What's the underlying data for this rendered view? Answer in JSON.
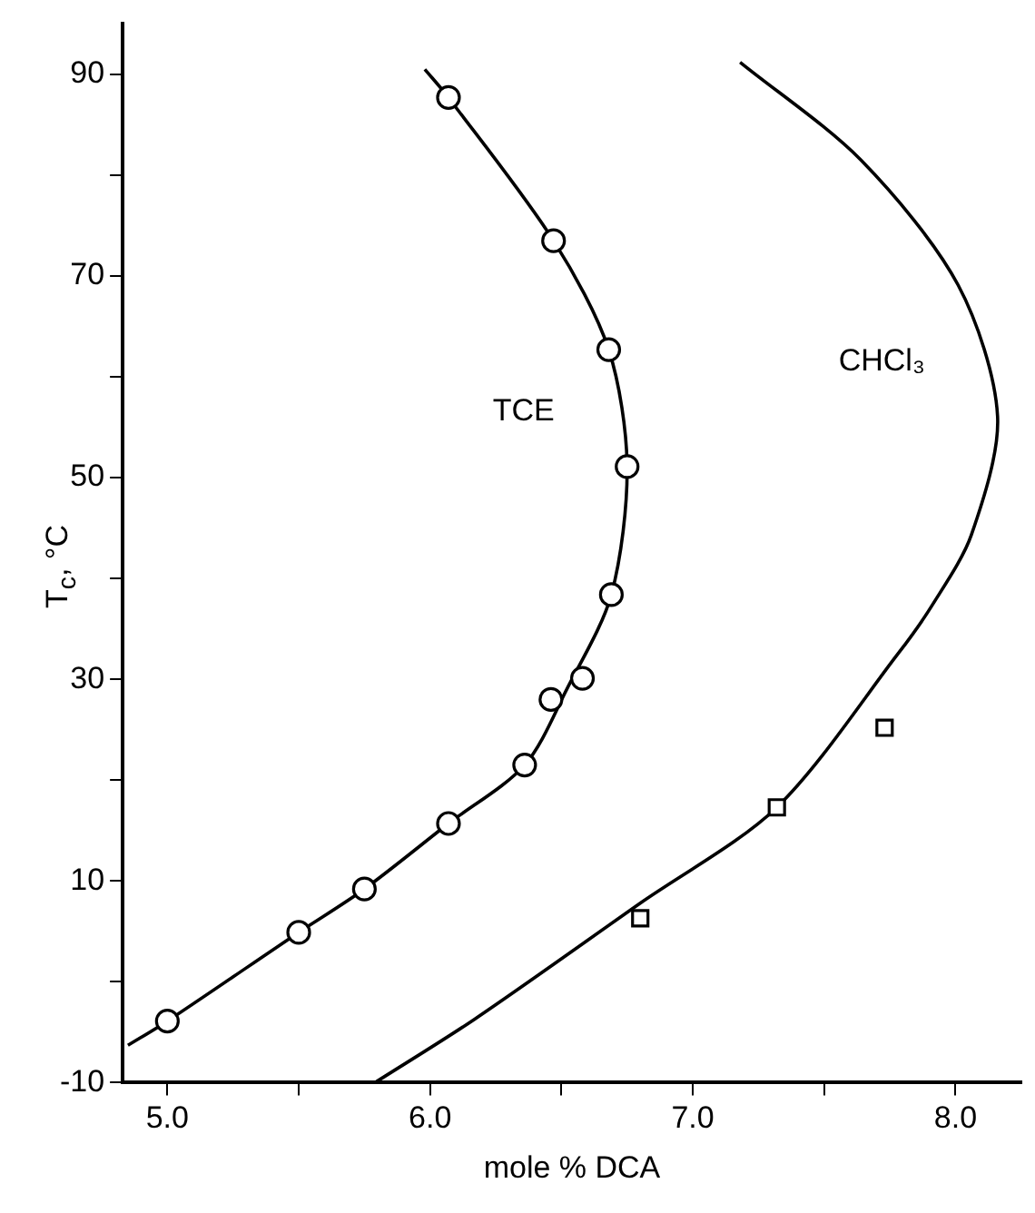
{
  "chart_data": {
    "type": "scatter",
    "xlabel": "mole % DCA",
    "ylabel": "T$_{c}$, °C",
    "xlim": [
      4.83,
      8.25
    ],
    "ylim": [
      -10,
      95
    ],
    "xticks": [
      {
        "value": 5,
        "label": "5.0"
      },
      {
        "value": 5.5,
        "label": null
      },
      {
        "value": 6,
        "label": "6.0"
      },
      {
        "value": 6.5,
        "label": null
      },
      {
        "value": 7,
        "label": "7.0"
      },
      {
        "value": 7.5,
        "label": null
      },
      {
        "value": 8,
        "label": "8.0"
      }
    ],
    "yticks": [
      -10,
      {
        "value": 0,
        "label": null
      },
      10,
      {
        "value": 20,
        "label": null
      },
      30,
      {
        "value": 40,
        "label": null
      },
      50,
      {
        "value": 60,
        "label": null
      },
      70,
      {
        "value": 80,
        "label": null
      },
      90
    ],
    "grid": false,
    "legend": false,
    "series": [
      {
        "type": "scatter",
        "marker": "circle",
        "color": "#000000",
        "x": [
          5.0,
          5.5,
          5.75,
          6.07,
          6.36,
          6.46,
          6.58,
          6.69,
          6.75,
          6.68,
          6.47,
          6.07
        ],
        "values": [
          -3.9,
          4.9,
          9.2,
          15.7,
          21.5,
          28.0,
          30.1,
          38.4,
          51.1,
          62.7,
          73.5,
          87.7
        ]
      },
      {
        "name": "TCE",
        "type": "line",
        "marker": "none",
        "color": "#000000",
        "x": [
          4.85,
          5.0,
          5.5,
          5.75,
          6.07,
          6.36,
          6.52,
          6.69,
          6.75,
          6.68,
          6.47,
          6.07,
          5.98
        ],
        "values": [
          -6.3,
          -3.9,
          4.9,
          9.2,
          15.7,
          21.5,
          29,
          38.4,
          51.1,
          62.7,
          73.5,
          87.7,
          90.5
        ]
      },
      {
        "type": "scatter",
        "marker": "square",
        "color": "#000000",
        "x": [
          6.8,
          7.32,
          7.73
        ],
        "values": [
          6.3,
          17.3,
          25.2
        ]
      },
      {
        "name": "CHCl₃",
        "type": "line",
        "marker": "none",
        "color": "#000000",
        "x": [
          5.79,
          6.17,
          6.8,
          7.32,
          7.78,
          7.91,
          8.06,
          8.16,
          8.01,
          7.64,
          7.18
        ],
        "values": [
          -10,
          -3.7,
          7.8,
          17.3,
          32.5,
          37.3,
          44.3,
          56.1,
          69.1,
          81.5,
          91.2
        ]
      }
    ]
  }
}
